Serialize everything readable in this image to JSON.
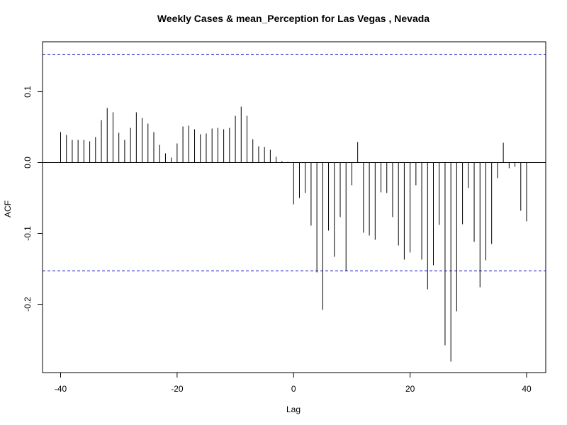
{
  "chart_data": {
    "type": "bar",
    "title": "Weekly Cases & mean_Perception for Las Vegas , Nevada",
    "xlabel": "Lag",
    "ylabel": "ACF",
    "xlim": [
      -40,
      40
    ],
    "ylim": [
      -0.29,
      0.16
    ],
    "x_ticks": [
      -40,
      -20,
      0,
      20,
      40
    ],
    "y_ticks": [
      -0.2,
      -0.1,
      0.0,
      0.1
    ],
    "x_tick_labels": [
      "-40",
      "-20",
      "0",
      "20",
      "40"
    ],
    "y_tick_labels": [
      "-0.2",
      "-0.1",
      "0.0",
      "0.1"
    ],
    "confidence_bounds": [
      0.153,
      -0.153
    ],
    "grid": false,
    "lags": [
      -40,
      -39,
      -38,
      -37,
      -36,
      -35,
      -34,
      -33,
      -32,
      -31,
      -30,
      -29,
      -28,
      -27,
      -26,
      -25,
      -24,
      -23,
      -22,
      -21,
      -20,
      -19,
      -18,
      -17,
      -16,
      -15,
      -14,
      -13,
      -12,
      -11,
      -10,
      -9,
      -8,
      -7,
      -6,
      -5,
      -4,
      -3,
      -2,
      -1,
      0,
      1,
      2,
      3,
      4,
      5,
      6,
      7,
      8,
      9,
      10,
      11,
      12,
      13,
      14,
      15,
      16,
      17,
      18,
      19,
      20,
      21,
      22,
      23,
      24,
      25,
      26,
      27,
      28,
      29,
      30,
      31,
      32,
      33,
      34,
      35,
      36,
      37,
      38,
      39,
      40
    ],
    "values": [
      0.043,
      0.039,
      0.032,
      0.032,
      0.032,
      0.03,
      0.036,
      0.06,
      0.077,
      0.071,
      0.042,
      0.032,
      0.049,
      0.071,
      0.063,
      0.055,
      0.043,
      0.025,
      0.013,
      0.007,
      0.027,
      0.051,
      0.052,
      0.047,
      0.04,
      0.041,
      0.048,
      0.049,
      0.047,
      0.049,
      0.066,
      0.079,
      0.066,
      0.033,
      0.023,
      0.022,
      0.018,
      0.008,
      0.002,
      0.001,
      -0.059,
      -0.05,
      -0.043,
      -0.089,
      -0.155,
      -0.208,
      -0.096,
      -0.133,
      -0.077,
      -0.153,
      -0.032,
      0.029,
      -0.099,
      -0.103,
      -0.109,
      -0.042,
      -0.043,
      -0.077,
      -0.117,
      -0.137,
      -0.127,
      -0.032,
      -0.137,
      -0.179,
      -0.145,
      -0.088,
      -0.258,
      -0.281,
      -0.21,
      -0.087,
      -0.036,
      -0.112,
      -0.176,
      -0.138,
      -0.115,
      -0.022,
      0.028,
      -0.008,
      -0.006,
      -0.068,
      -0.083
    ]
  },
  "colors": {
    "bars": "#000000",
    "axes": "#000000",
    "bounds": "#0000cc",
    "zero_line": "#000000"
  }
}
